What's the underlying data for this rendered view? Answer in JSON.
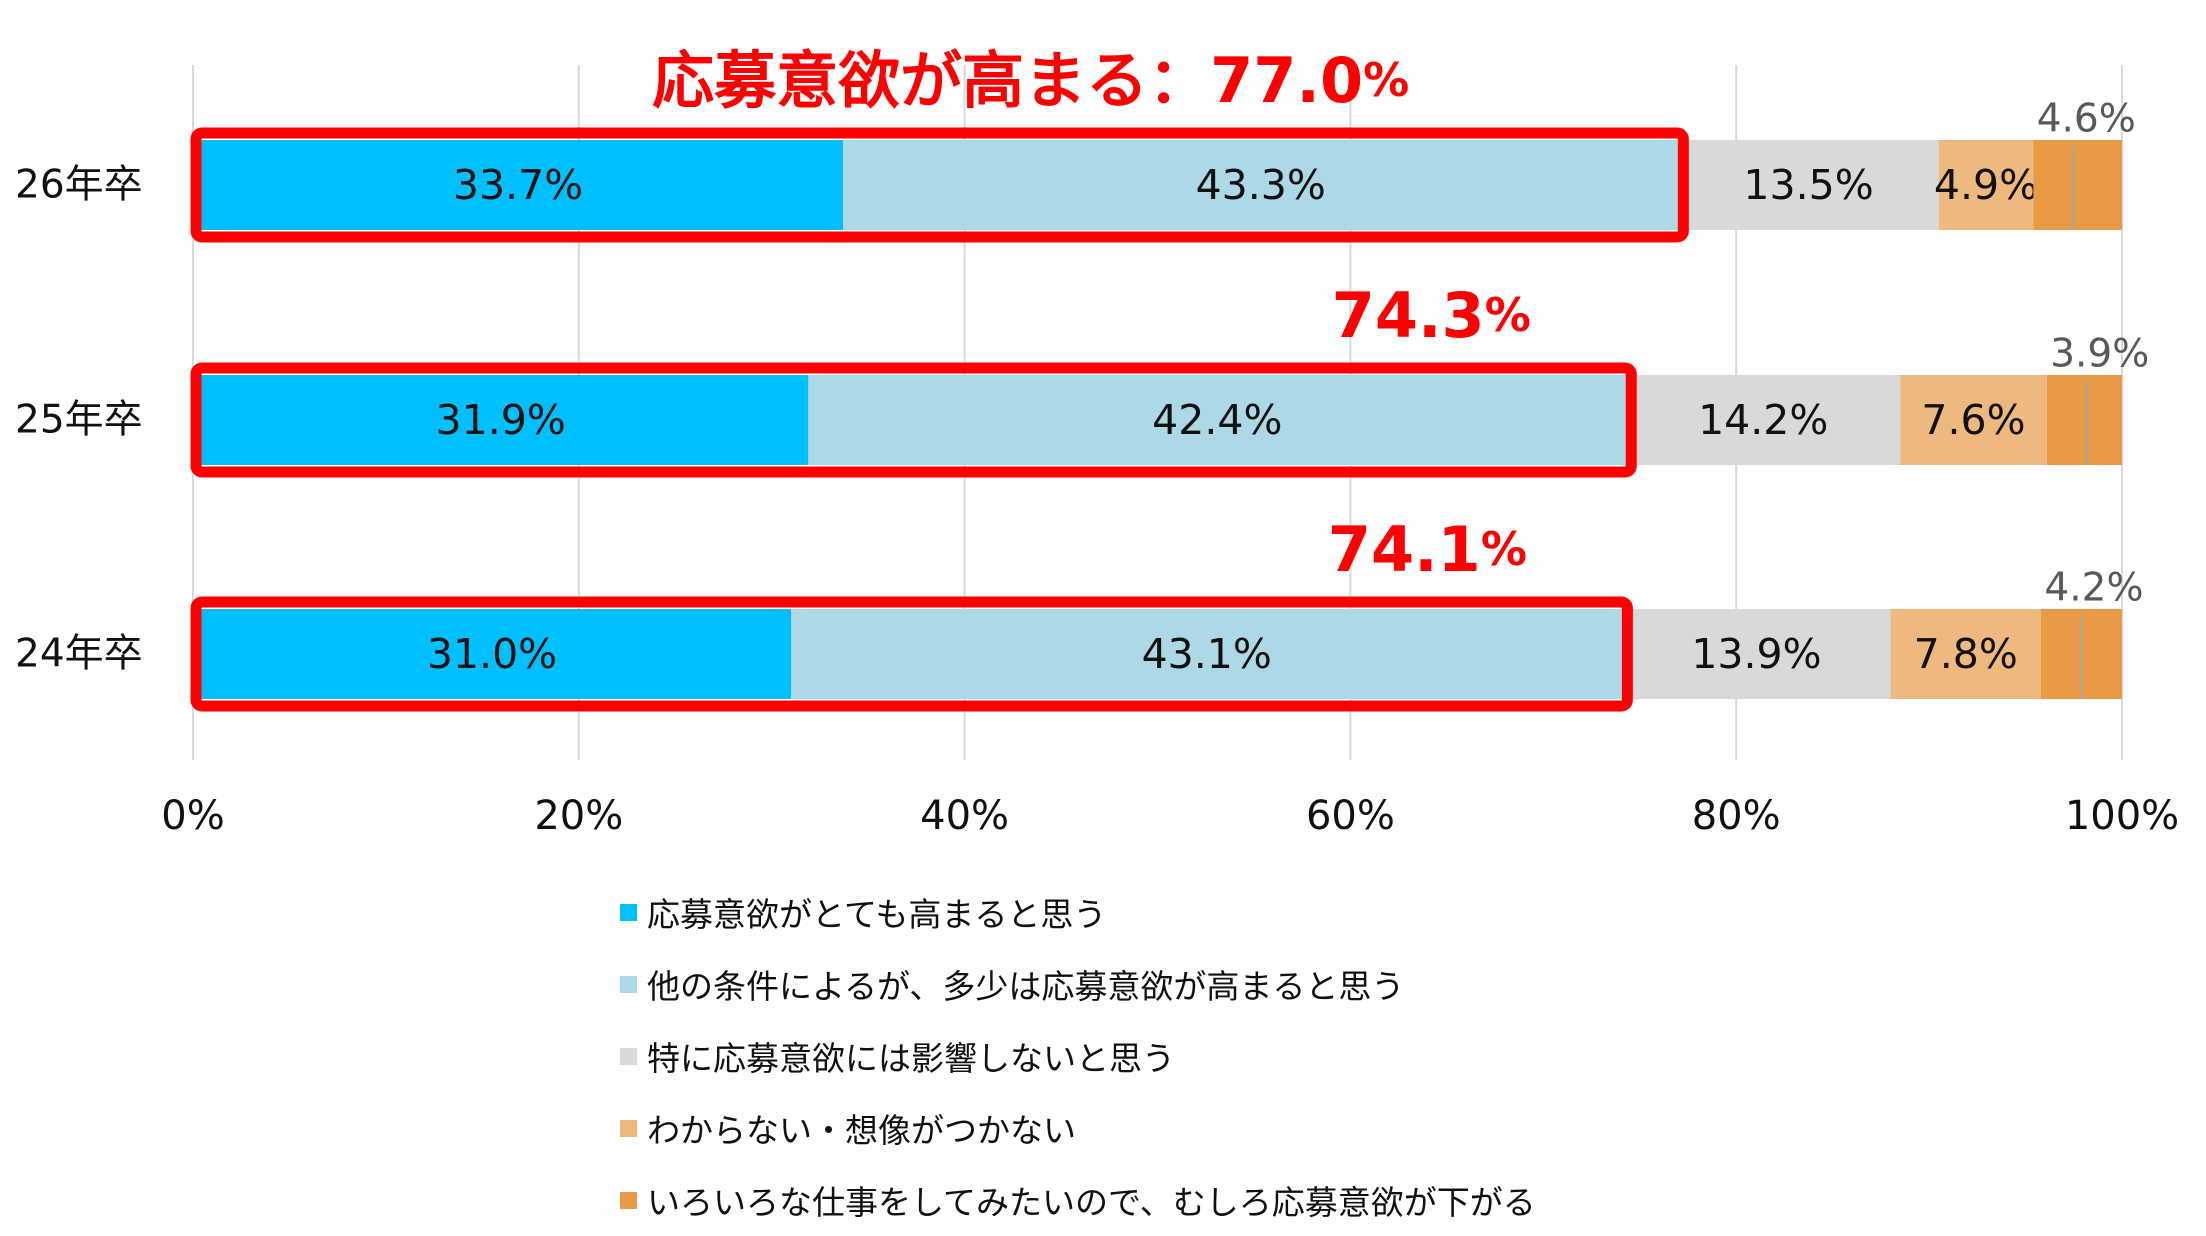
{
  "chart_data": {
    "type": "bar",
    "orientation": "horizontal",
    "stacked": true,
    "categories": [
      "26年卒",
      "25年卒",
      "24年卒"
    ],
    "xlim": [
      0,
      100
    ],
    "x_ticks": [
      "0%",
      "20%",
      "40%",
      "60%",
      "80%",
      "100%"
    ],
    "grid": true,
    "legend_position": "bottom",
    "series": [
      {
        "name": "応募意欲がとても高まると思う",
        "color": "#00BFFF",
        "values": [
          33.7,
          31.9,
          31.0
        ],
        "labels": [
          "33.7%",
          "31.9%",
          "31.0%"
        ]
      },
      {
        "name": "他の条件によるが、多少は応募意欲が高まると思う",
        "color": "#ADD8E6",
        "values": [
          43.3,
          42.4,
          43.1
        ],
        "labels": [
          "43.3%",
          "42.4%",
          "43.1%"
        ]
      },
      {
        "name": "特に応募意欲には影響しないと思う",
        "color": "#D9D9D9",
        "values": [
          13.5,
          14.2,
          13.9
        ],
        "labels": [
          "13.5%",
          "14.2%",
          "13.9%"
        ]
      },
      {
        "name": "わからない・想像がつかない",
        "color": "#EDB97E",
        "values": [
          4.9,
          7.6,
          7.8
        ],
        "labels": [
          "4.9%",
          "7.6%",
          "7.8%"
        ]
      },
      {
        "name": "いろいろな仕事をしてみたいので、むしろ応募意欲が下がる",
        "color": "#E99A45",
        "values": [
          4.6,
          3.9,
          4.2
        ],
        "labels": [
          "4.6%",
          "3.9%",
          "4.2%"
        ]
      }
    ],
    "annotations": [
      {
        "category": "26年卒",
        "value": 77.0,
        "number": "77.0",
        "pct": "%",
        "prefix": "応募意欲が高まる："
      },
      {
        "category": "25年卒",
        "value": 74.3,
        "number": "74.3",
        "pct": "%",
        "prefix": ""
      },
      {
        "category": "24年卒",
        "value": 74.1,
        "number": "74.1",
        "pct": "%",
        "prefix": ""
      }
    ],
    "highlight_color": "#FF0000"
  }
}
